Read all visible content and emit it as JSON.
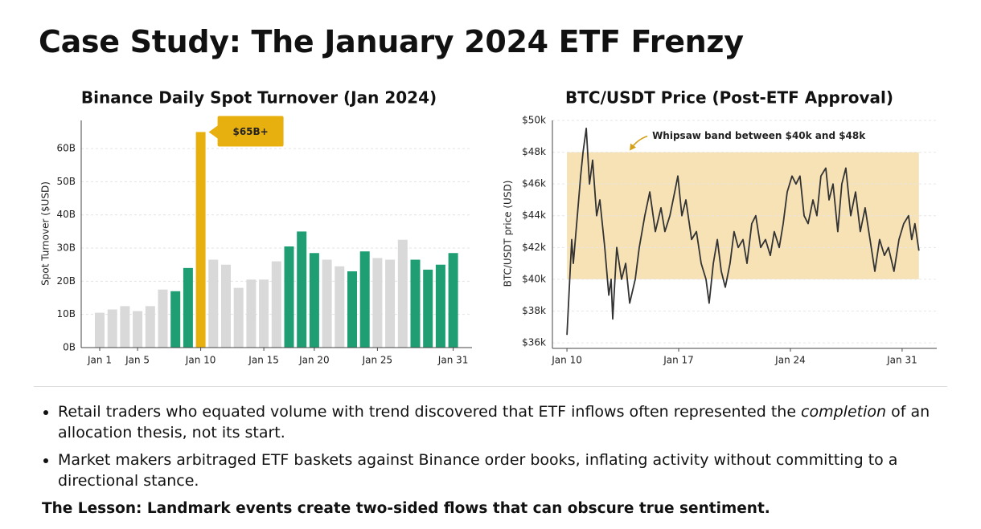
{
  "title": "Case Study: The January 2024 ETF Frenzy",
  "bullets": [
    [
      "Retail traders who equated volume with trend discovered that ETF inflows often represented the ",
      "completion",
      " of an allocation thesis, not its start."
    ],
    [
      "Market makers arbitraged ETF baskets against Binance order books, inflating activity without committing to a directional stance."
    ]
  ],
  "lesson": "The Lesson: Landmark events create two-sided flows that can obscure true sentiment.",
  "chart_data": [
    {
      "type": "bar",
      "title": "Binance Daily Spot Turnover (Jan 2024)",
      "y_label": "Spot Turnover ($USD)",
      "categories": [
        "Jan 1",
        null,
        null,
        "Jan 5",
        null,
        null,
        null,
        null,
        "Jan 10",
        null,
        null,
        null,
        null,
        "Jan 15",
        null,
        null,
        null,
        "Jan 20",
        null,
        null,
        null,
        null,
        "Jan 25",
        null,
        null,
        null,
        null,
        null,
        "Jan 31"
      ],
      "values": [
        10.5,
        11.5,
        12.5,
        11,
        12.5,
        17.5,
        17,
        24,
        65,
        26.5,
        25,
        18,
        20.5,
        20.5,
        26,
        30.5,
        35,
        28.5,
        26.5,
        24.5,
        23,
        29,
        27,
        26.5,
        32.5,
        26.5,
        23.5,
        25,
        28.5
      ],
      "colors": [
        "#d9d9d9",
        "#d9d9d9",
        "#d9d9d9",
        "#d9d9d9",
        "#d9d9d9",
        "#d9d9d9",
        "#1f9e74",
        "#1f9e74",
        "#e8b00f",
        "#d9d9d9",
        "#d9d9d9",
        "#d9d9d9",
        "#d9d9d9",
        "#d9d9d9",
        "#d9d9d9",
        "#1f9e74",
        "#1f9e74",
        "#1f9e74",
        "#d9d9d9",
        "#d9d9d9",
        "#1f9e74",
        "#1f9e74",
        "#d9d9d9",
        "#d9d9d9",
        "#d9d9d9",
        "#1f9e74",
        "#1f9e74",
        "#1f9e74",
        "#1f9e74"
      ],
      "annotation": "$65B+",
      "ylim": [
        0,
        68.5
      ],
      "yticks": [
        {
          "value": 0,
          "label": "0B"
        },
        {
          "value": 10,
          "label": "10B"
        },
        {
          "value": 20,
          "label": "20B"
        },
        {
          "value": 30,
          "label": "30B"
        },
        {
          "value": 40,
          "label": "40B"
        },
        {
          "value": 50,
          "label": "50B"
        },
        {
          "value": 60,
          "label": "60B"
        }
      ],
      "grid": true
    },
    {
      "type": "line",
      "title": "BTC/USDT Price (Post-ETF Approval)",
      "y_label": "BTC/USDT price (USD)",
      "color": "#333333",
      "x": [
        10.0,
        10.3,
        10.4,
        10.65,
        10.86,
        11.01,
        11.21,
        11.41,
        11.61,
        11.86,
        12.06,
        12.37,
        12.62,
        12.77,
        12.87,
        13.12,
        13.42,
        13.68,
        13.93,
        14.28,
        14.53,
        14.88,
        15.19,
        15.54,
        15.89,
        16.14,
        16.45,
        16.75,
        16.95,
        17.2,
        17.45,
        17.81,
        18.11,
        18.41,
        18.71,
        18.91,
        19.17,
        19.42,
        19.67,
        19.92,
        20.22,
        20.47,
        20.73,
        21.03,
        21.28,
        21.58,
        21.83,
        22.14,
        22.44,
        22.74,
        22.99,
        23.3,
        23.55,
        23.8,
        24.1,
        24.35,
        24.6,
        24.86,
        25.11,
        25.41,
        25.66,
        25.91,
        26.22,
        26.42,
        26.67,
        26.97,
        27.22,
        27.47,
        27.78,
        28.08,
        28.38,
        28.68,
        28.99,
        29.29,
        29.59,
        29.89,
        30.14,
        30.49,
        30.8,
        31.1,
        31.4,
        31.6,
        31.8,
        32.05
      ],
      "values": [
        36.5,
        42.5,
        41,
        44,
        46.5,
        48,
        49.5,
        46,
        47.5,
        44,
        45,
        42,
        39,
        40,
        37.5,
        42,
        40,
        41,
        38.5,
        40,
        42,
        44,
        45.5,
        43,
        44.5,
        43,
        44,
        45.5,
        46.5,
        44,
        45,
        42.5,
        43,
        41,
        40,
        38.5,
        41,
        42.5,
        40.5,
        39.5,
        41,
        43,
        42,
        42.5,
        41,
        43.5,
        44,
        42,
        42.5,
        41.5,
        43,
        42,
        43.5,
        45.5,
        46.5,
        46,
        46.5,
        44,
        43.5,
        45,
        44,
        46.5,
        47,
        45,
        46,
        43,
        46,
        47,
        44,
        45.5,
        43,
        44.5,
        42.5,
        40.5,
        42.5,
        41.5,
        42,
        40.5,
        42.5,
        43.5,
        44,
        42.5,
        43.5,
        41.8
      ],
      "band": [
        40,
        48
      ],
      "band_color": "#f7e2b6",
      "annotation": "Whipsaw band between $40k and $48k",
      "xlim": [
        9.09,
        33.17
      ],
      "xticks": [
        {
          "value": 10,
          "label": "Jan 10"
        },
        {
          "value": 17,
          "label": "Jan 17"
        },
        {
          "value": 24,
          "label": "Jan 24"
        },
        {
          "value": 31,
          "label": "Jan 31"
        }
      ],
      "ylim": [
        35.65,
        50
      ],
      "yticks": [
        {
          "value": 36,
          "label": "$36k"
        },
        {
          "value": 38,
          "label": "$38k"
        },
        {
          "value": 40,
          "label": "$40k"
        },
        {
          "value": 42,
          "label": "$42k"
        },
        {
          "value": 44,
          "label": "$44k"
        },
        {
          "value": 46,
          "label": "$46k"
        },
        {
          "value": 48,
          "label": "$48k"
        },
        {
          "value": 50,
          "label": "$50k"
        }
      ],
      "grid": true
    }
  ]
}
